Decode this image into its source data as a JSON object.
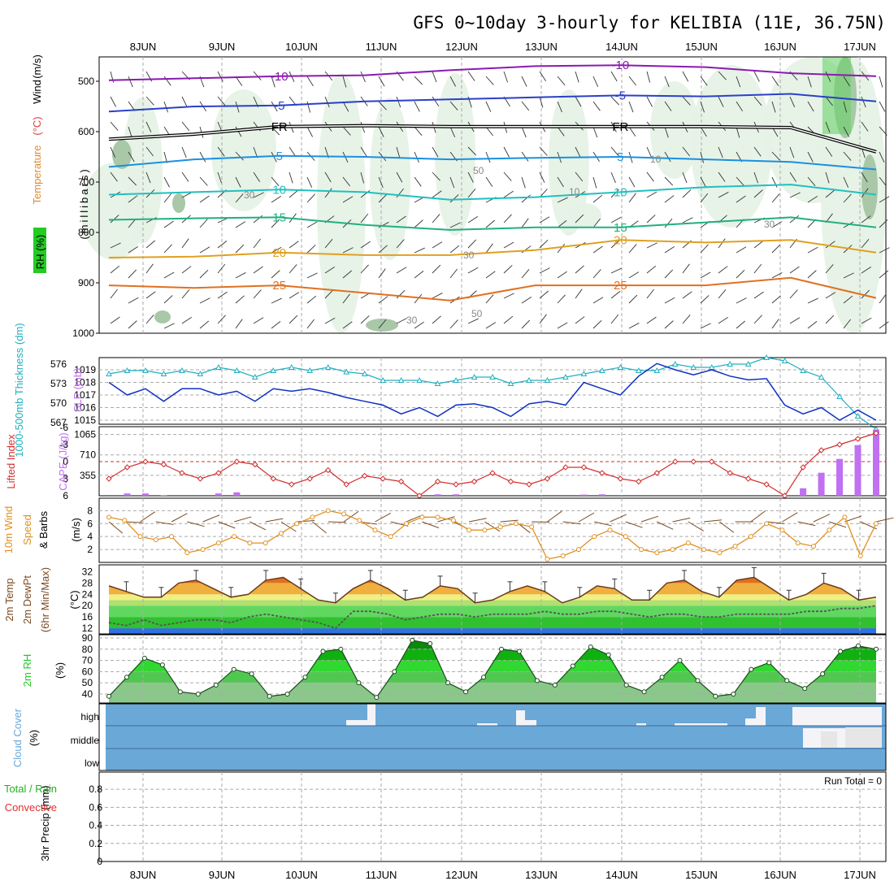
{
  "title": "GFS 0~10day 3-hourly for KELIBIA (11E, 36.75N)",
  "dates": [
    "8JUN",
    "9JUN",
    "10JUN",
    "11JUN",
    "12JUN",
    "13JUN",
    "14JUN",
    "15JUN",
    "16JUN",
    "17JUN"
  ],
  "colors": {
    "temp_label": "#e04040",
    "wind_label": "#4040e0",
    "rh_green": "#22cc22",
    "thickness": "#20b0c0",
    "slp": "#1030c0",
    "lifted": "#d03030",
    "cape": "#c070f0",
    "wind10": "#e09020",
    "barbs10": "#7a4a20",
    "cloud": "#6aa8d8"
  },
  "chart_data": [
    {
      "type": "contour",
      "panel": "upper-air",
      "ylabel_parts": [
        "RH (%)",
        "Temperature",
        "(°C)",
        "Wind",
        "(m/s)"
      ],
      "ylabel2": "(millibars)",
      "yticks": [
        500,
        600,
        700,
        800,
        900,
        1000
      ],
      "ylim": [
        1000,
        450
      ],
      "contours": [
        {
          "label": "-10",
          "color": "#8a1ab0",
          "values": [
            -10,
            -10,
            -10,
            -10,
            -10,
            -10,
            -10,
            -10,
            -10,
            -10
          ],
          "pressure": [
            498,
            494,
            490,
            488,
            478,
            470,
            468,
            472,
            484,
            490
          ]
        },
        {
          "label": "-5",
          "color": "#2a40c8",
          "values": [
            -5
          ],
          "pressure": [
            560,
            550,
            548,
            540,
            536,
            532,
            528,
            530,
            525,
            540
          ]
        },
        {
          "label": "FR",
          "color": "#000000",
          "values": [
            0
          ],
          "pressure": [
            615,
            605,
            590,
            588,
            590,
            590,
            590,
            590,
            592,
            640
          ]
        },
        {
          "label": "5",
          "color": "#1a90e0",
          "values": [
            5
          ],
          "pressure": [
            670,
            655,
            648,
            650,
            655,
            652,
            650,
            655,
            660,
            675
          ]
        },
        {
          "label": "10",
          "color": "#20c0c0",
          "values": [
            10
          ],
          "pressure": [
            725,
            720,
            715,
            720,
            735,
            730,
            720,
            710,
            705,
            725
          ]
        },
        {
          "label": "15",
          "color": "#20b080",
          "values": [
            15
          ],
          "pressure": [
            775,
            772,
            770,
            785,
            795,
            790,
            790,
            780,
            770,
            790
          ]
        },
        {
          "label": "20",
          "color": "#e0a020",
          "values": [
            20
          ],
          "pressure": [
            850,
            848,
            840,
            845,
            845,
            835,
            815,
            820,
            815,
            840
          ]
        },
        {
          "label": "25",
          "color": "#e07020",
          "values": [
            25
          ],
          "pressure": [
            905,
            910,
            905,
            920,
            935,
            905,
            905,
            905,
            890,
            930
          ]
        }
      ],
      "rh_contour_labels": [
        "30",
        "50",
        "10",
        "30",
        "50",
        "30",
        "10",
        "30"
      ],
      "barbs": "wind barbs per level every 3 hours"
    },
    {
      "type": "line",
      "panel": "thickness-slp",
      "ylabel_left": "1000-500mb Thickness (dm)",
      "ylabel_right": "SLP (mb)",
      "yticks_thickness": [
        567,
        570,
        573,
        576
      ],
      "yticks_slp": [
        1015,
        1016,
        1017,
        1018,
        1019
      ],
      "series": [
        {
          "name": "thickness",
          "values": [
            574.5,
            575,
            575,
            574.5,
            575,
            574.5,
            575.5,
            575,
            574,
            575,
            575.5,
            575,
            575.5,
            574.8,
            574.5,
            573.5,
            573.5,
            573.5,
            573,
            573.5,
            574,
            574,
            573,
            573.5,
            573.5,
            574,
            574.5,
            575,
            575.5,
            575,
            575,
            576,
            575.5,
            575.5,
            576,
            576,
            577,
            576.5,
            575,
            574,
            571,
            568,
            566
          ]
        },
        {
          "name": "SLP",
          "values": [
            1018,
            1017,
            1017.5,
            1016.5,
            1017.5,
            1017.5,
            1017,
            1017.3,
            1016.5,
            1017.5,
            1017.3,
            1017.5,
            1017.2,
            1016.8,
            1016.5,
            1016.2,
            1015.5,
            1016,
            1015.3,
            1016.2,
            1016.3,
            1016,
            1015.3,
            1016.3,
            1016.5,
            1016.2,
            1018,
            1017.5,
            1017,
            1018.5,
            1019.5,
            1019,
            1018.6,
            1019,
            1018.5,
            1018.2,
            1018.3,
            1016.2,
            1015.5,
            1016,
            1015,
            1015.8,
            1015
          ]
        }
      ]
    },
    {
      "type": "line+bar",
      "panel": "lifted-cape",
      "ylabel_left": "Lifted Index",
      "ylabel_right": "CAPE (J/kg)",
      "yticks_li": [
        -6,
        -3,
        0,
        3,
        6
      ],
      "yticks_cape": [
        355,
        710,
        1065
      ],
      "series": [
        {
          "name": "Lifted Index",
          "values": [
            3,
            1,
            0,
            0.5,
            2,
            3,
            2,
            0,
            0.5,
            3,
            4,
            3,
            1.5,
            4,
            2.5,
            3,
            3.5,
            6,
            3.5,
            4,
            3.5,
            2,
            3.5,
            4,
            3,
            1,
            1,
            2,
            3,
            3.5,
            2,
            0,
            0,
            0,
            2,
            3,
            4,
            6,
            1,
            -2,
            -3,
            -4,
            -5
          ]
        },
        {
          "name": "CAPE",
          "values": [
            0,
            40,
            40,
            10,
            0,
            0,
            40,
            60,
            0,
            0,
            0,
            0,
            0,
            0,
            0,
            0,
            0,
            0,
            25,
            25,
            0,
            0,
            0,
            0,
            0,
            0,
            20,
            25,
            0,
            0,
            0,
            0,
            0,
            0,
            0,
            0,
            0,
            0,
            130,
            400,
            640,
            880,
            1150
          ]
        }
      ]
    },
    {
      "type": "line",
      "panel": "wind10m",
      "ylabel_parts": [
        "10m Wind",
        "Speed",
        "& Barbs",
        "(m/s)"
      ],
      "yticks": [
        2,
        4,
        6,
        8
      ],
      "series": [
        {
          "name": "10m wind speed",
          "values": [
            7,
            6.5,
            4,
            3.5,
            4,
            1.5,
            2,
            3,
            4,
            3,
            3,
            4.5,
            6,
            7,
            8,
            7.5,
            6.5,
            5,
            4,
            6,
            7,
            7,
            6.5,
            5,
            5,
            5.5,
            6,
            5.5,
            0.5,
            1,
            2,
            4,
            5,
            4,
            2,
            1.5,
            2,
            3,
            2,
            1.5,
            2.5,
            4,
            6,
            5,
            3,
            2.5,
            5,
            7,
            1,
            6
          ]
        }
      ]
    },
    {
      "type": "area",
      "panel": "temp-dewpoint",
      "ylabel_parts": [
        "2m Temp",
        "2m DewPt",
        "(6hr Min/Max)",
        "(°C)"
      ],
      "yticks": [
        12,
        16,
        20,
        24,
        28,
        32
      ],
      "series": [
        {
          "name": "2m Temp",
          "values": [
            27,
            25,
            23,
            23,
            28,
            29,
            26,
            23,
            24,
            29,
            30,
            26,
            22,
            21,
            26,
            29,
            26,
            22,
            23,
            27,
            26,
            21,
            22,
            25,
            27,
            25,
            21,
            23,
            27,
            26,
            22,
            22,
            28,
            29,
            25,
            23,
            29,
            30,
            26,
            22,
            24,
            28,
            26,
            22,
            23
          ]
        },
        {
          "name": "2m DewPt",
          "values": [
            14,
            13,
            15,
            13,
            14,
            15,
            15,
            14,
            16,
            17,
            16,
            15,
            14,
            12,
            18,
            18,
            17,
            15,
            16,
            17,
            17,
            16,
            17,
            17,
            17,
            18,
            17,
            17,
            18,
            18,
            17,
            16,
            17,
            17,
            16,
            16,
            17,
            17,
            17,
            17,
            18,
            18,
            19,
            19,
            20
          ]
        }
      ]
    },
    {
      "type": "area",
      "panel": "rh2m",
      "ylabel_parts": [
        "2m RH",
        "(%)"
      ],
      "yticks": [
        40,
        50,
        60,
        70,
        80,
        90
      ],
      "series": [
        {
          "name": "2m RH",
          "values": [
            38,
            55,
            72,
            66,
            42,
            40,
            48,
            62,
            58,
            38,
            40,
            55,
            78,
            80,
            50,
            37,
            60,
            88,
            85,
            50,
            42,
            55,
            80,
            78,
            52,
            48,
            65,
            82,
            75,
            48,
            42,
            55,
            70,
            52,
            38,
            40,
            62,
            68,
            52,
            45,
            58,
            78,
            83,
            80
          ]
        }
      ]
    },
    {
      "type": "bar",
      "panel": "cloud-cover",
      "ylabel_parts": [
        "Cloud Cover",
        "(%)"
      ],
      "levels": [
        "high",
        "middle",
        "low"
      ]
    },
    {
      "type": "bar",
      "panel": "precip",
      "ylabel_parts": [
        "Total / Rain",
        "Convective",
        "3hr Precip (mm)"
      ],
      "yticks": [
        0,
        0.2,
        0.4,
        0.6,
        0.8
      ],
      "run_total": "Run Total = 0",
      "values": []
    }
  ]
}
